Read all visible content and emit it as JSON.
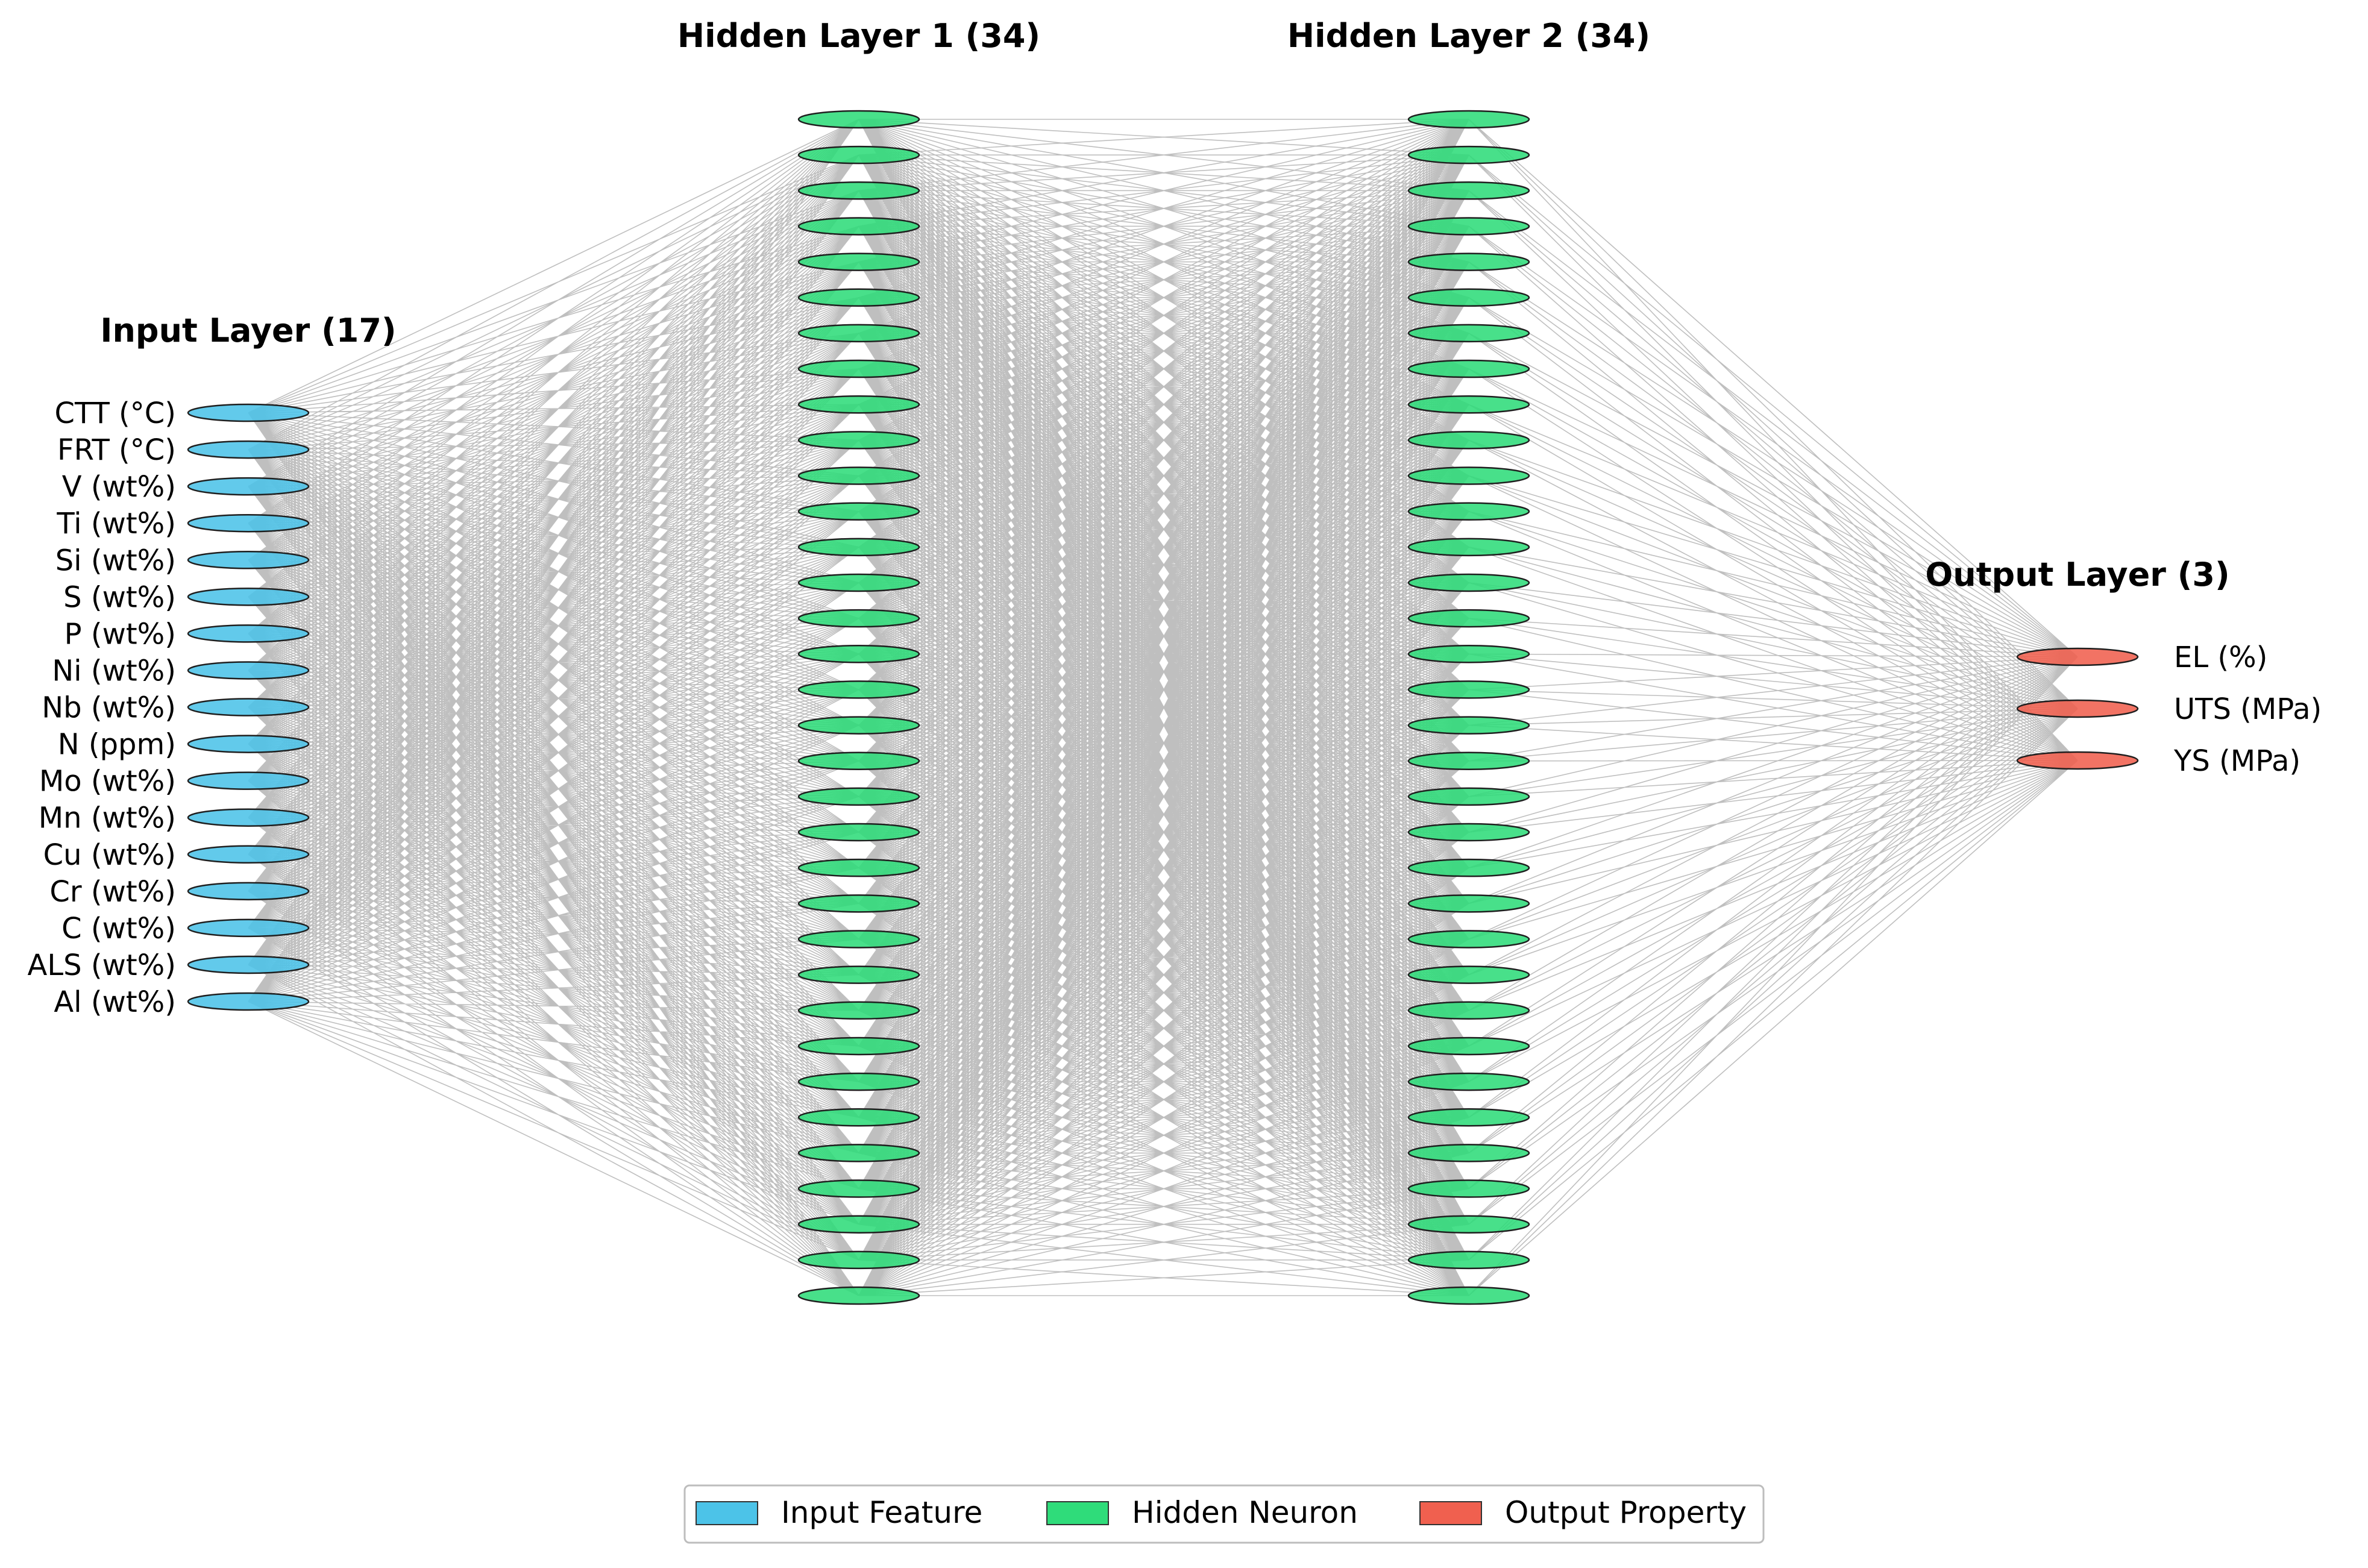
{
  "diagram": {
    "colors": {
      "input": "#4cc3e8",
      "hidden": "#2fdc7a",
      "output": "#f0604f",
      "edge": "#8a8a8a",
      "outline": "#1f1f1f"
    },
    "layers": [
      {
        "title": "Input Layer (17)",
        "kind": "input",
        "count": 17,
        "labels": [
          "CTT (°C)",
          "FRT (°C)",
          "V (wt%)",
          "Ti (wt%)",
          "Si (wt%)",
          "S (wt%)",
          "P (wt%)",
          "Ni (wt%)",
          "Nb (wt%)",
          "N (ppm)",
          "Mo (wt%)",
          "Mn (wt%)",
          "Cu (wt%)",
          "Cr (wt%)",
          "C (wt%)",
          "ALS (wt%)",
          "Al (wt%)"
        ]
      },
      {
        "title": "Hidden Layer 1 (34)",
        "kind": "hidden",
        "count": 34,
        "labels": []
      },
      {
        "title": "Hidden Layer 2 (34)",
        "kind": "hidden",
        "count": 34,
        "labels": []
      },
      {
        "title": "Output Layer (3)",
        "kind": "output",
        "count": 3,
        "labels": [
          "EL (%)",
          "UTS (MPa)",
          "YS (MPa)"
        ]
      }
    ],
    "legend": [
      {
        "label": "Input Feature",
        "kind": "input"
      },
      {
        "label": "Hidden Neuron",
        "kind": "hidden"
      },
      {
        "label": "Output Property",
        "kind": "output"
      }
    ]
  }
}
